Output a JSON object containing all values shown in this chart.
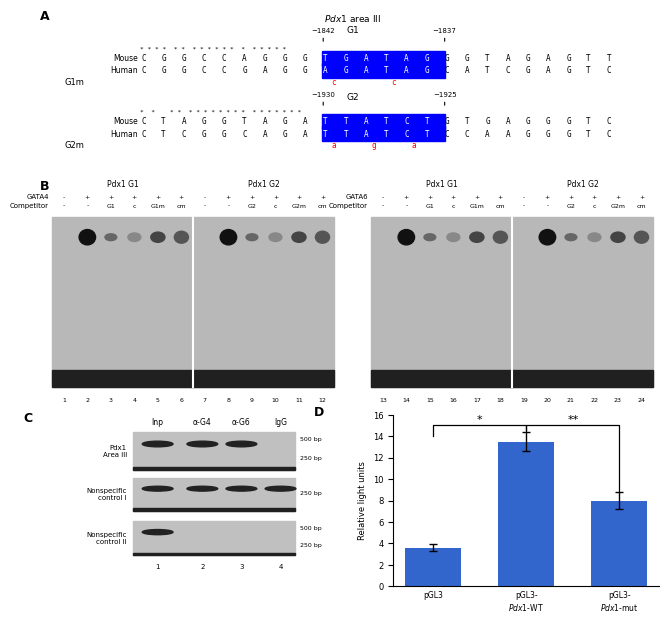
{
  "panel_A": {
    "pdx1_label": "Pdx1 area III",
    "G1_label": "G1",
    "G1_pos_left": "-1842",
    "G1_pos_right": "-1837",
    "mouse_G1_seq_left": "CGGCCAGGG",
    "mouse_G1_seq_blue": "TGATAG",
    "mouse_G1_seq_right": "GGTAGAGTT",
    "human_G1_seq_left": "CGGCCGAGG",
    "human_G1_seq_blue": "AGATAG",
    "human_G1_seq_right": "CATCGAGTC",
    "G1m_label": "G1m",
    "G2_label": "G2",
    "G2_pos_left": "-1930",
    "G2_pos_right": "-1925",
    "mouse_G2_seq_left": "CTAGGTAGA",
    "mouse_G2_seq_blue": "TTATCT",
    "mouse_G2_seq_right": "GTGAGGGTC",
    "human_G2_seq_left": "CTCGGCAGA",
    "human_G2_seq_blue": "TTATCT",
    "human_G2_seq_right": "CCAAGGGTC",
    "G2m_label": "G2m"
  },
  "panel_B_left": {
    "title_left": "Pdx1 G1",
    "title_right": "Pdx1 G2",
    "protein_label": "GATA4",
    "competitor_label": "Competitor",
    "protein_vals": [
      "-",
      "+",
      "+",
      "+",
      "+",
      "+",
      "-",
      "+",
      "+",
      "+",
      "+",
      "+"
    ],
    "competitor_vals": [
      "-",
      "-",
      "G1",
      "c",
      "G1m",
      "cm",
      "-",
      "-",
      "G2",
      "c",
      "G2m",
      "cm"
    ],
    "lane_nums": [
      "1",
      "2",
      "3",
      "4",
      "5",
      "6",
      "7",
      "8",
      "9",
      "10",
      "11",
      "12"
    ]
  },
  "panel_B_right": {
    "title_left": "Pdx1 G1",
    "title_right": "Pdx1 G2",
    "protein_label": "GATA6",
    "competitor_label": "Competitor",
    "protein_vals": [
      "-",
      "+",
      "+",
      "+",
      "+",
      "+",
      "-",
      "+",
      "+",
      "+",
      "+",
      "+"
    ],
    "competitor_vals": [
      "-",
      "-",
      "G1",
      "c",
      "G1m",
      "cm",
      "-",
      "-",
      "G2",
      "c",
      "G2m",
      "cm"
    ],
    "lane_nums": [
      "13",
      "14",
      "15",
      "16",
      "17",
      "18",
      "19",
      "20",
      "21",
      "22",
      "23",
      "24"
    ]
  },
  "panel_C": {
    "col_headers": [
      "Inp",
      "α-G4",
      "α-G6",
      "IgG"
    ],
    "row_labels": [
      "Pdx1\nArea III",
      "Nonspecific\ncontrol I",
      "Nonspecific\ncontrol II"
    ],
    "size_labels": [
      [
        "500 bp",
        "250 bp"
      ],
      [
        "250 bp"
      ],
      [
        "500 bp",
        "250 bp"
      ]
    ],
    "bands": [
      [
        1,
        2,
        3
      ],
      [
        1,
        2,
        3,
        4
      ],
      [
        1
      ]
    ],
    "lane_nums": [
      "1",
      "2",
      "3",
      "4"
    ]
  },
  "panel_D": {
    "categories": [
      "pGL3",
      "pGL3-\nPdx1-WT",
      "pGL3-\nPdx1-mut"
    ],
    "values": [
      3.6,
      13.5,
      8.0
    ],
    "errors": [
      0.35,
      0.9,
      0.8
    ],
    "bar_color": "#3366CC",
    "ylabel": "Relative light units",
    "ylim": [
      0,
      16
    ],
    "yticks": [
      0,
      2,
      4,
      6,
      8,
      10,
      12,
      14,
      16
    ]
  }
}
